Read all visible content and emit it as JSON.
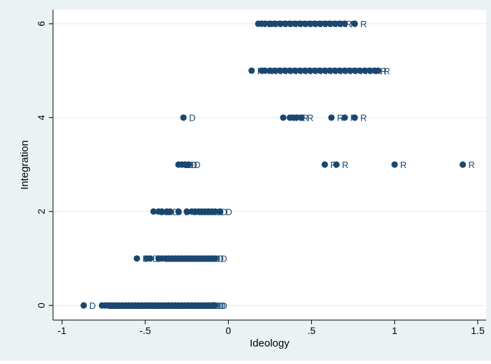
{
  "colors": {
    "outer_bg": "#eaf2f3",
    "plot_bg": "#ffffff",
    "marker": "#1a476f",
    "grid": "#eaf2f3",
    "axis": "#000000",
    "text": "#000000"
  },
  "chart_data": {
    "type": "scatter",
    "xlabel": "Ideology",
    "ylabel": "Integration",
    "xlim": [
      -1,
      1.5
    ],
    "ylim": [
      0,
      6
    ],
    "xticks": [
      -1,
      -0.5,
      0,
      0.5,
      1,
      1.5
    ],
    "xtick_labels": [
      "-1",
      "-.5",
      "0",
      ".5",
      "1",
      "1.5"
    ],
    "yticks": [
      0,
      2,
      4,
      6
    ],
    "ytick_labels": [
      "0",
      "2",
      "4",
      "6"
    ],
    "grid": "horizontal",
    "marker_label_position": "right",
    "series": [
      {
        "label": "D",
        "points": [
          [
            -0.87,
            0
          ],
          [
            -0.76,
            0
          ],
          [
            -0.74,
            0
          ],
          [
            -0.72,
            0
          ],
          [
            -0.7,
            0
          ],
          [
            -0.68,
            0
          ],
          [
            -0.66,
            0
          ],
          [
            -0.64,
            0
          ],
          [
            -0.62,
            0
          ],
          [
            -0.6,
            0
          ],
          [
            -0.58,
            0
          ],
          [
            -0.56,
            0
          ],
          [
            -0.54,
            0
          ],
          [
            -0.52,
            0
          ],
          [
            -0.5,
            0
          ],
          [
            -0.48,
            0
          ],
          [
            -0.46,
            0
          ],
          [
            -0.44,
            0
          ],
          [
            -0.42,
            0
          ],
          [
            -0.4,
            0
          ],
          [
            -0.38,
            0
          ],
          [
            -0.36,
            0
          ],
          [
            -0.34,
            0
          ],
          [
            -0.32,
            0
          ],
          [
            -0.3,
            0
          ],
          [
            -0.28,
            0
          ],
          [
            -0.26,
            0
          ],
          [
            -0.24,
            0
          ],
          [
            -0.22,
            0
          ],
          [
            -0.2,
            0
          ],
          [
            -0.18,
            0
          ],
          [
            -0.16,
            0
          ],
          [
            -0.14,
            0
          ],
          [
            -0.12,
            0
          ],
          [
            -0.1,
            0
          ],
          [
            -0.09,
            0
          ],
          [
            -0.08,
            0
          ],
          [
            -0.55,
            1
          ],
          [
            -0.49,
            1
          ],
          [
            -0.47,
            1
          ],
          [
            -0.42,
            1
          ],
          [
            -0.4,
            1
          ],
          [
            -0.38,
            1
          ],
          [
            -0.36,
            1
          ],
          [
            -0.34,
            1
          ],
          [
            -0.32,
            1
          ],
          [
            -0.3,
            1
          ],
          [
            -0.28,
            1
          ],
          [
            -0.26,
            1
          ],
          [
            -0.24,
            1
          ],
          [
            -0.22,
            1
          ],
          [
            -0.2,
            1
          ],
          [
            -0.18,
            1
          ],
          [
            -0.16,
            1
          ],
          [
            -0.14,
            1
          ],
          [
            -0.12,
            1
          ],
          [
            -0.1,
            1
          ],
          [
            -0.08,
            1
          ],
          [
            -0.45,
            2
          ],
          [
            -0.42,
            2
          ],
          [
            -0.4,
            2
          ],
          [
            -0.37,
            2
          ],
          [
            -0.35,
            2
          ],
          [
            -0.3,
            2
          ],
          [
            -0.25,
            2
          ],
          [
            -0.22,
            2
          ],
          [
            -0.2,
            2
          ],
          [
            -0.18,
            2
          ],
          [
            -0.16,
            2
          ],
          [
            -0.14,
            2
          ],
          [
            -0.12,
            2
          ],
          [
            -0.1,
            2
          ],
          [
            -0.08,
            2
          ],
          [
            -0.05,
            2
          ],
          [
            -0.3,
            3
          ],
          [
            -0.28,
            3
          ],
          [
            -0.26,
            3
          ],
          [
            -0.24,
            3
          ],
          [
            -0.27,
            4
          ]
        ]
      },
      {
        "label": "R",
        "points": [
          [
            0.58,
            3
          ],
          [
            0.65,
            3
          ],
          [
            1.0,
            3
          ],
          [
            1.41,
            3
          ],
          [
            0.33,
            4
          ],
          [
            0.37,
            4
          ],
          [
            0.39,
            4
          ],
          [
            0.41,
            4
          ],
          [
            0.44,
            4
          ],
          [
            0.62,
            4
          ],
          [
            0.7,
            4
          ],
          [
            0.76,
            4
          ],
          [
            0.14,
            5
          ],
          [
            0.2,
            5
          ],
          [
            0.22,
            5
          ],
          [
            0.25,
            5
          ],
          [
            0.28,
            5
          ],
          [
            0.31,
            5
          ],
          [
            0.34,
            5
          ],
          [
            0.37,
            5
          ],
          [
            0.4,
            5
          ],
          [
            0.43,
            5
          ],
          [
            0.46,
            5
          ],
          [
            0.49,
            5
          ],
          [
            0.52,
            5
          ],
          [
            0.55,
            5
          ],
          [
            0.58,
            5
          ],
          [
            0.61,
            5
          ],
          [
            0.64,
            5
          ],
          [
            0.67,
            5
          ],
          [
            0.7,
            5
          ],
          [
            0.73,
            5
          ],
          [
            0.76,
            5
          ],
          [
            0.79,
            5
          ],
          [
            0.82,
            5
          ],
          [
            0.85,
            5
          ],
          [
            0.88,
            5
          ],
          [
            0.9,
            5
          ],
          [
            0.18,
            6
          ],
          [
            0.2,
            6
          ],
          [
            0.22,
            6
          ],
          [
            0.25,
            6
          ],
          [
            0.28,
            6
          ],
          [
            0.31,
            6
          ],
          [
            0.34,
            6
          ],
          [
            0.37,
            6
          ],
          [
            0.4,
            6
          ],
          [
            0.43,
            6
          ],
          [
            0.46,
            6
          ],
          [
            0.49,
            6
          ],
          [
            0.52,
            6
          ],
          [
            0.55,
            6
          ],
          [
            0.58,
            6
          ],
          [
            0.61,
            6
          ],
          [
            0.64,
            6
          ],
          [
            0.67,
            6
          ],
          [
            0.7,
            6
          ],
          [
            0.76,
            6
          ]
        ]
      }
    ]
  }
}
